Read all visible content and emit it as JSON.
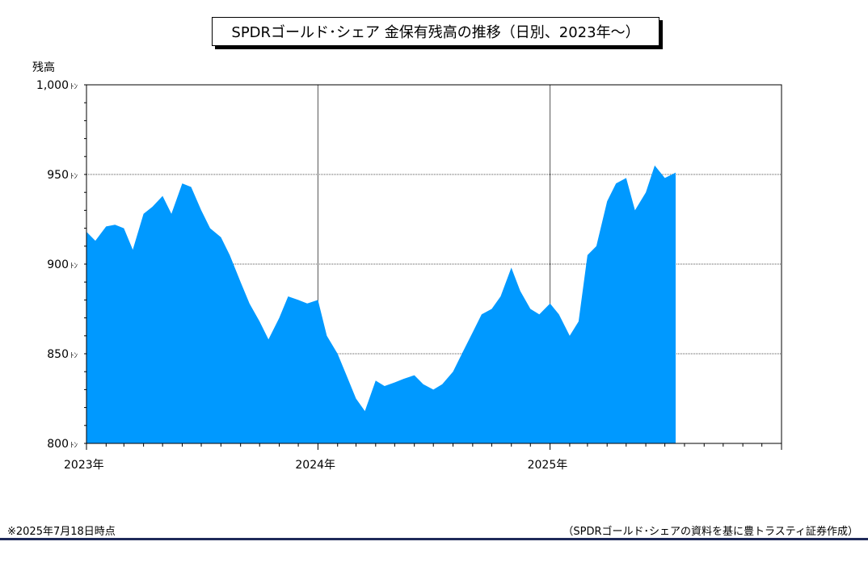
{
  "chart_data": {
    "type": "area",
    "title": "SPDRゴールド･シェア 金保有残高の推移（日別、2023年～）",
    "ylabel": "残高",
    "y_unit": "ﾄﾝ",
    "ylim": [
      800,
      1000
    ],
    "yticks": [
      800,
      850,
      900,
      950,
      1000
    ],
    "ytick_labels": [
      "800",
      "850",
      "900",
      "950",
      "1,000"
    ],
    "xlim": [
      "2023-01-01",
      "2026-01-01"
    ],
    "xtick_labels": [
      "2023年",
      "2024年",
      "2025年"
    ],
    "xtick_dates": [
      "2023-01-01",
      "2024-01-01",
      "2025-01-01"
    ],
    "grid": "major",
    "fill_color": "#0099ff",
    "x": [
      "2023-01-01",
      "2023-01-15",
      "2023-02-01",
      "2023-02-15",
      "2023-03-01",
      "2023-03-15",
      "2023-04-01",
      "2023-04-15",
      "2023-05-01",
      "2023-05-15",
      "2023-06-01",
      "2023-06-15",
      "2023-07-01",
      "2023-07-15",
      "2023-08-01",
      "2023-08-15",
      "2023-09-01",
      "2023-09-15",
      "2023-10-01",
      "2023-10-15",
      "2023-11-01",
      "2023-11-15",
      "2023-12-01",
      "2023-12-15",
      "2024-01-01",
      "2024-01-15",
      "2024-02-01",
      "2024-02-15",
      "2024-03-01",
      "2024-03-15",
      "2024-04-01",
      "2024-04-15",
      "2024-05-01",
      "2024-05-15",
      "2024-06-01",
      "2024-06-15",
      "2024-07-01",
      "2024-07-15",
      "2024-08-01",
      "2024-08-15",
      "2024-09-01",
      "2024-09-15",
      "2024-10-01",
      "2024-10-15",
      "2024-11-01",
      "2024-11-15",
      "2024-12-01",
      "2024-12-15",
      "2025-01-01",
      "2025-01-15",
      "2025-02-01",
      "2025-02-15",
      "2025-03-01",
      "2025-03-15",
      "2025-04-01",
      "2025-04-15",
      "2025-05-01",
      "2025-05-15",
      "2025-06-01",
      "2025-06-15",
      "2025-07-01",
      "2025-07-18"
    ],
    "values": [
      918,
      913,
      921,
      922,
      920,
      908,
      928,
      932,
      938,
      928,
      945,
      943,
      930,
      920,
      915,
      905,
      890,
      878,
      868,
      858,
      870,
      882,
      880,
      878,
      880,
      860,
      850,
      838,
      825,
      818,
      835,
      832,
      834,
      836,
      838,
      833,
      830,
      833,
      840,
      850,
      862,
      872,
      875,
      882,
      898,
      885,
      875,
      872,
      878,
      872,
      860,
      868,
      905,
      910,
      935,
      945,
      948,
      930,
      940,
      955,
      948,
      951
    ]
  },
  "notes": {
    "left": "※2025年7月18日時点",
    "right": "（SPDRゴールド･シェアの資料を基に豊トラスティ証券作成）"
  }
}
